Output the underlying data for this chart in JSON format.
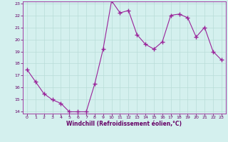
{
  "x": [
    0,
    1,
    2,
    3,
    4,
    5,
    6,
    7,
    8,
    9,
    10,
    11,
    12,
    13,
    14,
    15,
    16,
    17,
    18,
    19,
    20,
    21,
    22,
    23
  ],
  "y": [
    17.5,
    16.5,
    15.5,
    15.0,
    14.7,
    14.0,
    14.0,
    14.0,
    16.3,
    19.2,
    23.2,
    22.2,
    22.4,
    20.4,
    19.6,
    19.2,
    19.8,
    22.0,
    22.1,
    21.8,
    20.2,
    21.0,
    19.0,
    18.3
  ],
  "bg_color": "#d4f0ee",
  "line_color": "#992299",
  "marker_color": "#992299",
  "grid_color": "#b8dcd8",
  "xlabel": "Windchill (Refroidissement éolien,°C)",
  "xlabel_color": "#660066",
  "tick_color": "#660066",
  "ylim": [
    14,
    23
  ],
  "xlim": [
    -0.5,
    23.5
  ],
  "yticks": [
    14,
    15,
    16,
    17,
    18,
    19,
    20,
    21,
    22,
    23
  ],
  "xticks": [
    0,
    1,
    2,
    3,
    4,
    5,
    6,
    7,
    8,
    9,
    10,
    11,
    12,
    13,
    14,
    15,
    16,
    17,
    18,
    19,
    20,
    21,
    22,
    23
  ],
  "spine_color": "#992299",
  "figsize": [
    3.2,
    2.0
  ],
  "dpi": 100
}
